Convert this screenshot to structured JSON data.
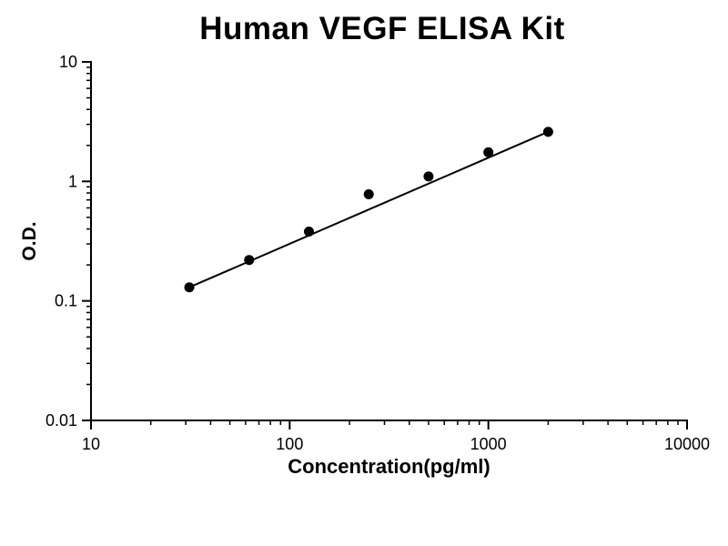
{
  "figure": {
    "background_color": "#ffffff",
    "foreground_color": "#000000"
  },
  "chart_data": {
    "type": "scatter",
    "title": "Human VEGF ELISA Kit",
    "xlabel": "Concentration(pg/ml)",
    "ylabel": "O.D.",
    "x_scale": "log",
    "y_scale": "log",
    "xlim": [
      10,
      10000
    ],
    "ylim": [
      0.01,
      10
    ],
    "x_ticks": [
      10,
      100,
      1000,
      10000
    ],
    "x_tick_labels": [
      "10",
      "100",
      "1000",
      "10000"
    ],
    "y_ticks": [
      0.01,
      0.1,
      1,
      10
    ],
    "y_tick_labels": [
      "0.01",
      "0.1",
      "1",
      "10"
    ],
    "grid": false,
    "legend": "none",
    "series": [
      {
        "name": "standard-points",
        "type": "scatter",
        "marker": "filled-circle",
        "marker_size": 5.5,
        "color": "#000000",
        "x": [
          31.25,
          62.5,
          125,
          250,
          500,
          1000,
          2000
        ],
        "y": [
          0.13,
          0.22,
          0.38,
          0.78,
          1.1,
          1.75,
          2.6
        ]
      },
      {
        "name": "fit-line",
        "type": "line",
        "color": "#000000",
        "width": 2,
        "x": [
          31.25,
          2000
        ],
        "y": [
          0.13,
          2.6
        ]
      }
    ]
  }
}
